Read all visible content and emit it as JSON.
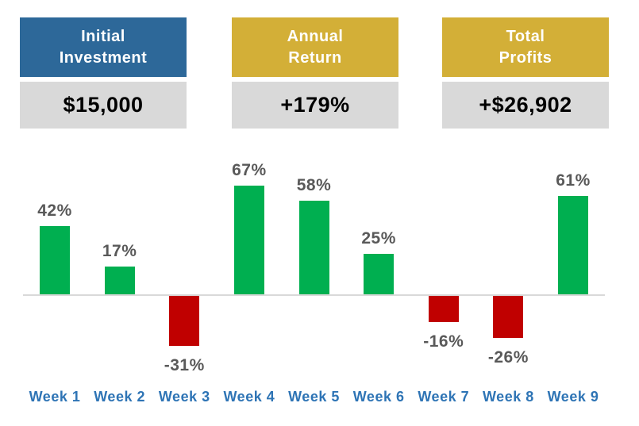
{
  "kpi_cards": [
    {
      "title": "Initial\nInvestment",
      "value": "$15,000",
      "header_color": "#2D6899",
      "header_text_color": "#FFFFFF",
      "value_bg_color": "#D9D9D9",
      "value_text_color": "#000000"
    },
    {
      "title": "Annual\nReturn",
      "value": "+179%",
      "header_color": "#D3AF37",
      "header_text_color": "#FFFFFF",
      "value_bg_color": "#D9D9D9",
      "value_text_color": "#000000"
    },
    {
      "title": "Total\nProfits",
      "value": "+$26,902",
      "header_color": "#D3AF37",
      "header_text_color": "#FFFFFF",
      "value_bg_color": "#D9D9D9",
      "value_text_color": "#000000"
    }
  ],
  "chart_data": {
    "type": "bar",
    "title": "",
    "xlabel": "",
    "ylabel": "",
    "unit": "%",
    "categories": [
      "Week 1",
      "Week 2",
      "Week 3",
      "Week 4",
      "Week 5",
      "Week 6",
      "Week 7",
      "Week 8",
      "Week 9"
    ],
    "values": [
      42,
      17,
      -31,
      67,
      58,
      25,
      -16,
      -26,
      61
    ],
    "value_labels": [
      "42%",
      "17%",
      "-31%",
      "67%",
      "58%",
      "25%",
      "-16%",
      "-26%",
      "61%"
    ],
    "ylim": [
      -40,
      80
    ],
    "grid": false,
    "legend": "none",
    "y_axis_visible": false,
    "positive_color": "#00AF50",
    "negative_color": "#C00000",
    "value_label_color": "#595959",
    "category_label_color": "#2E74B5",
    "axis_line_color": "#D9D9D9"
  }
}
